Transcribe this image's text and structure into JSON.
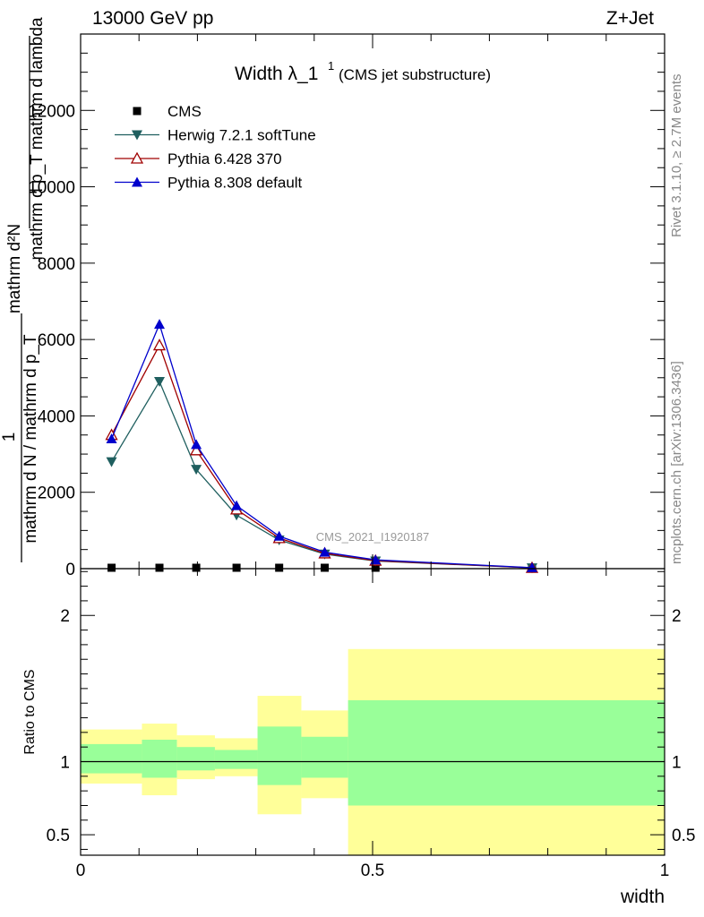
{
  "header": {
    "energy_label": "13000 GeV pp",
    "process_label": "Z+Jet"
  },
  "side_labels": {
    "rivet": "Rivet 3.1.10, ≥ 2.7M events",
    "mcplots": "mcplots.cern.ch [arXiv:1306.3436]"
  },
  "watermark": "CMS_2021_I1920187",
  "chart_data": [
    {
      "type": "line",
      "title_main": "Width λ_1",
      "title_sup": "1",
      "title_sub": "(CMS jet substructure)",
      "ylabel_numer": "mathrm d²N",
      "ylabel_denom": "mathrm d p_T mathrm d lambda",
      "ylabel_one": "1",
      "ylabel_left": "mathrm d N / mathrm d p_T",
      "xlim": [
        0,
        1
      ],
      "ylim": [
        0,
        14000
      ],
      "y_ticks": [
        {
          "v": 0,
          "label": "0"
        },
        {
          "v": 2000,
          "label": "2000"
        },
        {
          "v": 4000,
          "label": "4000"
        },
        {
          "v": 6000,
          "label": "6000"
        },
        {
          "v": 8000,
          "label": "8000"
        },
        {
          "v": 10000,
          "label": "10000"
        },
        {
          "v": 12000,
          "label": "12000"
        }
      ],
      "legend_position": "top-left",
      "series": [
        {
          "name": "CMS",
          "marker": "square",
          "color": "#000000",
          "line": false,
          "x": [
            0.053,
            0.135,
            0.198,
            0.267,
            0.34,
            0.418,
            0.505,
            0.773
          ],
          "y": [
            0,
            0,
            0,
            0,
            0,
            0,
            0,
            0
          ]
        },
        {
          "name": "Herwig 7.2.1 softTune",
          "marker": "triangle-down",
          "color": "#1f5f5f",
          "line": true,
          "x": [
            0.053,
            0.135,
            0.198,
            0.267,
            0.34,
            0.418,
            0.505,
            0.773
          ],
          "y": [
            2800,
            4900,
            2600,
            1400,
            750,
            380,
            200,
            20
          ]
        },
        {
          "name": "Pythia 6.428 370",
          "marker": "triangle-up-open",
          "color": "#a00000",
          "line": true,
          "x": [
            0.053,
            0.135,
            0.198,
            0.267,
            0.34,
            0.418,
            0.505,
            0.773
          ],
          "y": [
            3500,
            5850,
            3100,
            1550,
            800,
            400,
            210,
            22
          ]
        },
        {
          "name": "Pythia 8.308 default",
          "marker": "triangle-up",
          "color": "#0000cc",
          "line": true,
          "x": [
            0.053,
            0.135,
            0.198,
            0.267,
            0.34,
            0.418,
            0.505,
            0.773
          ],
          "y": [
            3400,
            6400,
            3250,
            1650,
            850,
            430,
            230,
            25
          ]
        }
      ]
    },
    {
      "type": "area",
      "ylabel": "Ratio to CMS",
      "xlabel": "width",
      "xlim": [
        0,
        1
      ],
      "ylim": [
        0.36,
        2.32
      ],
      "y_ticks": [
        {
          "v": 0.5,
          "label": "0.5"
        },
        {
          "v": 1,
          "label": "1"
        },
        {
          "v": 2,
          "label": "2"
        }
      ],
      "x_ticks": [
        {
          "v": 0,
          "label": "0"
        },
        {
          "v": 0.5,
          "label": "0.5"
        },
        {
          "v": 1,
          "label": "1"
        }
      ],
      "reference_line": 1,
      "bands": [
        {
          "x0": 0.0,
          "x1": 0.105,
          "yellow": [
            0.85,
            1.22
          ],
          "green": [
            0.92,
            1.12
          ]
        },
        {
          "x0": 0.105,
          "x1": 0.165,
          "yellow": [
            0.77,
            1.26
          ],
          "green": [
            0.89,
            1.15
          ]
        },
        {
          "x0": 0.165,
          "x1": 0.23,
          "yellow": [
            0.88,
            1.18
          ],
          "green": [
            0.94,
            1.1
          ]
        },
        {
          "x0": 0.23,
          "x1": 0.303,
          "yellow": [
            0.9,
            1.16
          ],
          "green": [
            0.95,
            1.08
          ]
        },
        {
          "x0": 0.303,
          "x1": 0.378,
          "yellow": [
            0.64,
            1.45
          ],
          "green": [
            0.84,
            1.24
          ]
        },
        {
          "x0": 0.378,
          "x1": 0.458,
          "yellow": [
            0.75,
            1.35
          ],
          "green": [
            0.89,
            1.17
          ]
        },
        {
          "x0": 0.458,
          "x1": 1.0,
          "yellow": [
            0.36,
            1.77
          ],
          "green": [
            0.7,
            1.42
          ]
        }
      ]
    }
  ]
}
